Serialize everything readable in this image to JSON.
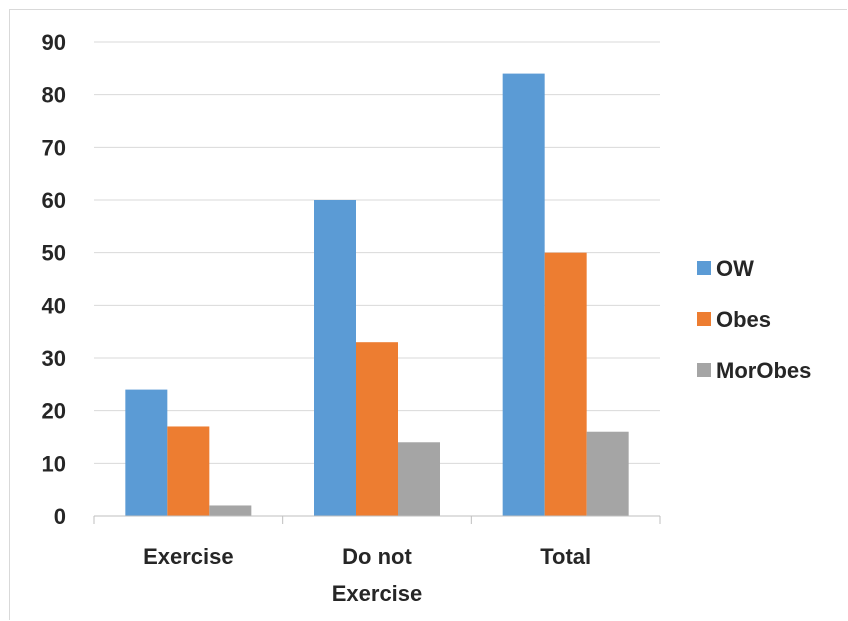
{
  "chart_data": {
    "type": "bar",
    "title": "",
    "xlabel": "",
    "ylabel": "",
    "categories": [
      [
        "Exercise"
      ],
      [
        "Do not",
        "Exercise"
      ],
      [
        "Total"
      ]
    ],
    "series": [
      {
        "name": "OW",
        "color": "#5b9bd5",
        "values": [
          24,
          60,
          84
        ]
      },
      {
        "name": "Obes",
        "color": "#ed7d31",
        "values": [
          17,
          33,
          50
        ]
      },
      {
        "name": "MorObes",
        "color": "#a5a5a5",
        "values": [
          2,
          14,
          16
        ]
      }
    ],
    "ylim": [
      0,
      90
    ],
    "yticks": [
      0,
      10,
      20,
      30,
      40,
      50,
      60,
      70,
      80,
      90
    ],
    "grid": true,
    "legend_position": "right"
  }
}
